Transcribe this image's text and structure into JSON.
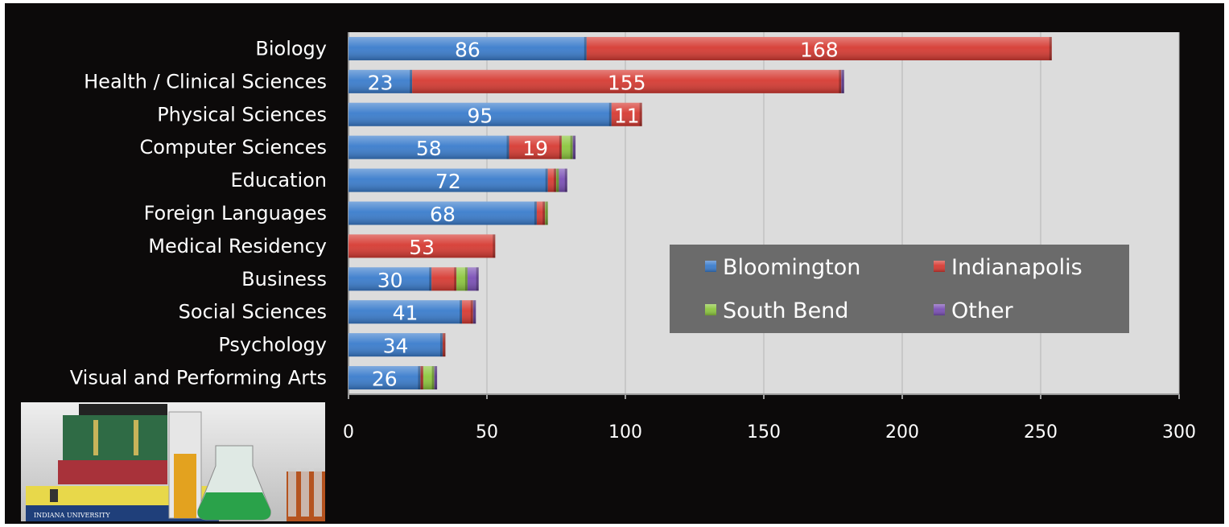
{
  "chart_data": {
    "type": "bar",
    "orientation": "horizontal",
    "stacked": true,
    "categories": [
      "Biology",
      "Health / Clinical Sciences",
      "Physical Sciences",
      "Computer Sciences",
      "Education",
      "Foreign Languages",
      "Medical Residency",
      "Business",
      "Social Sciences",
      "Psychology",
      "Visual and Performing Arts"
    ],
    "series": [
      {
        "name": "Bloomington",
        "color": "#3a7ccc",
        "values": [
          86,
          23,
          95,
          58,
          72,
          68,
          0,
          30,
          41,
          34,
          26
        ],
        "labels": [
          "86",
          "23",
          "95",
          "58",
          "72",
          "68",
          "",
          "30",
          "41",
          "34",
          "26"
        ]
      },
      {
        "name": "Indianapolis",
        "color": "#d63a32",
        "values": [
          168,
          155,
          11,
          19,
          3,
          3,
          53,
          9,
          4,
          1,
          1
        ],
        "labels": [
          "168",
          "155",
          "11",
          "19",
          "",
          "",
          "53",
          "",
          "",
          "",
          ""
        ]
      },
      {
        "name": "South Bend",
        "color": "#8cc63e",
        "values": [
          0,
          0,
          0,
          4,
          1,
          1,
          0,
          4,
          0,
          0,
          4
        ],
        "labels": [
          "",
          "",
          "",
          "",
          "",
          "",
          "",
          "",
          "",
          "",
          ""
        ]
      },
      {
        "name": "Other",
        "color": "#7a4fb5",
        "values": [
          0,
          1,
          0,
          1,
          3,
          0,
          0,
          4,
          1,
          0,
          1
        ],
        "labels": [
          "",
          "",
          "",
          "",
          "",
          "",
          "",
          "",
          "",
          "",
          ""
        ]
      }
    ],
    "xlim": [
      0,
      300
    ],
    "xticks": [
      "0",
      "50",
      "100",
      "150",
      "200",
      "250",
      "300"
    ],
    "grid": true,
    "legend_position": "inside-right",
    "title": "",
    "xlabel": "",
    "ylabel": "",
    "plot_background": "#dcdcdc",
    "legend_background": "#6b6b6b"
  },
  "photo": {
    "description_icon": "books-and-lab-glassware-photo",
    "book_spine_text": "INDIANA UNIVERSITY"
  }
}
